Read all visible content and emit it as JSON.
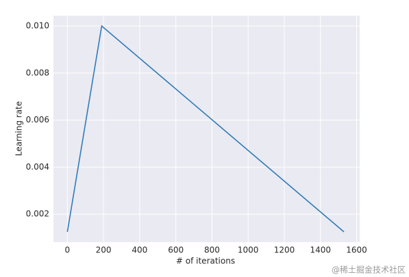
{
  "chart_data": {
    "type": "line",
    "xlabel": "# of iterations",
    "ylabel": "Learning rate",
    "x": [
      0,
      190,
      1530
    ],
    "series": [
      {
        "color": "#2f7bb6",
        "values": [
          0.00125,
          0.01,
          0.00125
        ]
      }
    ],
    "xlim": [
      -77,
      1617
    ],
    "xticks": [
      0,
      200,
      400,
      600,
      800,
      1000,
      1200,
      1400,
      1600
    ],
    "ylim": [
      0.0008125,
      0.0104375
    ],
    "yticks": [
      0.002,
      0.004,
      0.006,
      0.008,
      {
        "value": 0.01,
        "label": "0.010"
      }
    ],
    "grid": true,
    "watermark": "@稀土掘金技术社区"
  }
}
